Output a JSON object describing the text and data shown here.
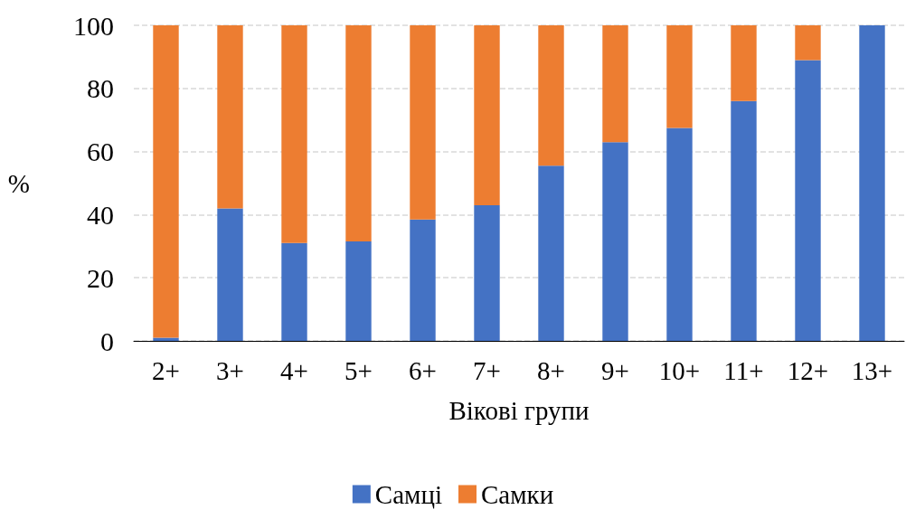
{
  "chart_data": {
    "type": "bar",
    "stacked": true,
    "xlabel": "Вікові групи",
    "ylabel": "%",
    "categories": [
      "2+",
      "3+",
      "4+",
      "5+",
      "6+",
      "7+",
      "8+",
      "9+",
      "10+",
      "11+",
      "12+",
      "13+"
    ],
    "series": [
      {
        "name": "Самці",
        "color": "#4472c4",
        "values": [
          1,
          42,
          31,
          31.5,
          38.5,
          43,
          55.5,
          63,
          67.5,
          76,
          89,
          100
        ]
      },
      {
        "name": "Самки",
        "color": "#ed7d31",
        "values": [
          99,
          58,
          69,
          68.5,
          61.5,
          57,
          44.5,
          37,
          32.5,
          24,
          11,
          0
        ]
      }
    ],
    "ylim": [
      0,
      100
    ],
    "yticks": [
      0,
      20,
      40,
      60,
      80,
      100
    ],
    "grid": "y",
    "legend": "bottom"
  }
}
